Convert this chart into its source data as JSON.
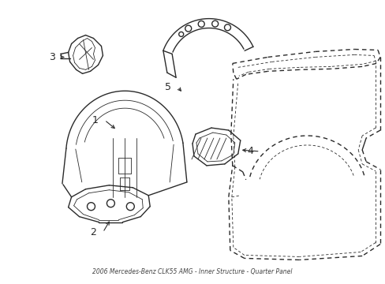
{
  "bg_color": "#ffffff",
  "line_color": "#2a2a2a",
  "figsize": [
    4.89,
    3.6
  ],
  "dpi": 100,
  "title": "2006 Mercedes-Benz CLK55 AMG - Inner Structure - Quarter Panel"
}
